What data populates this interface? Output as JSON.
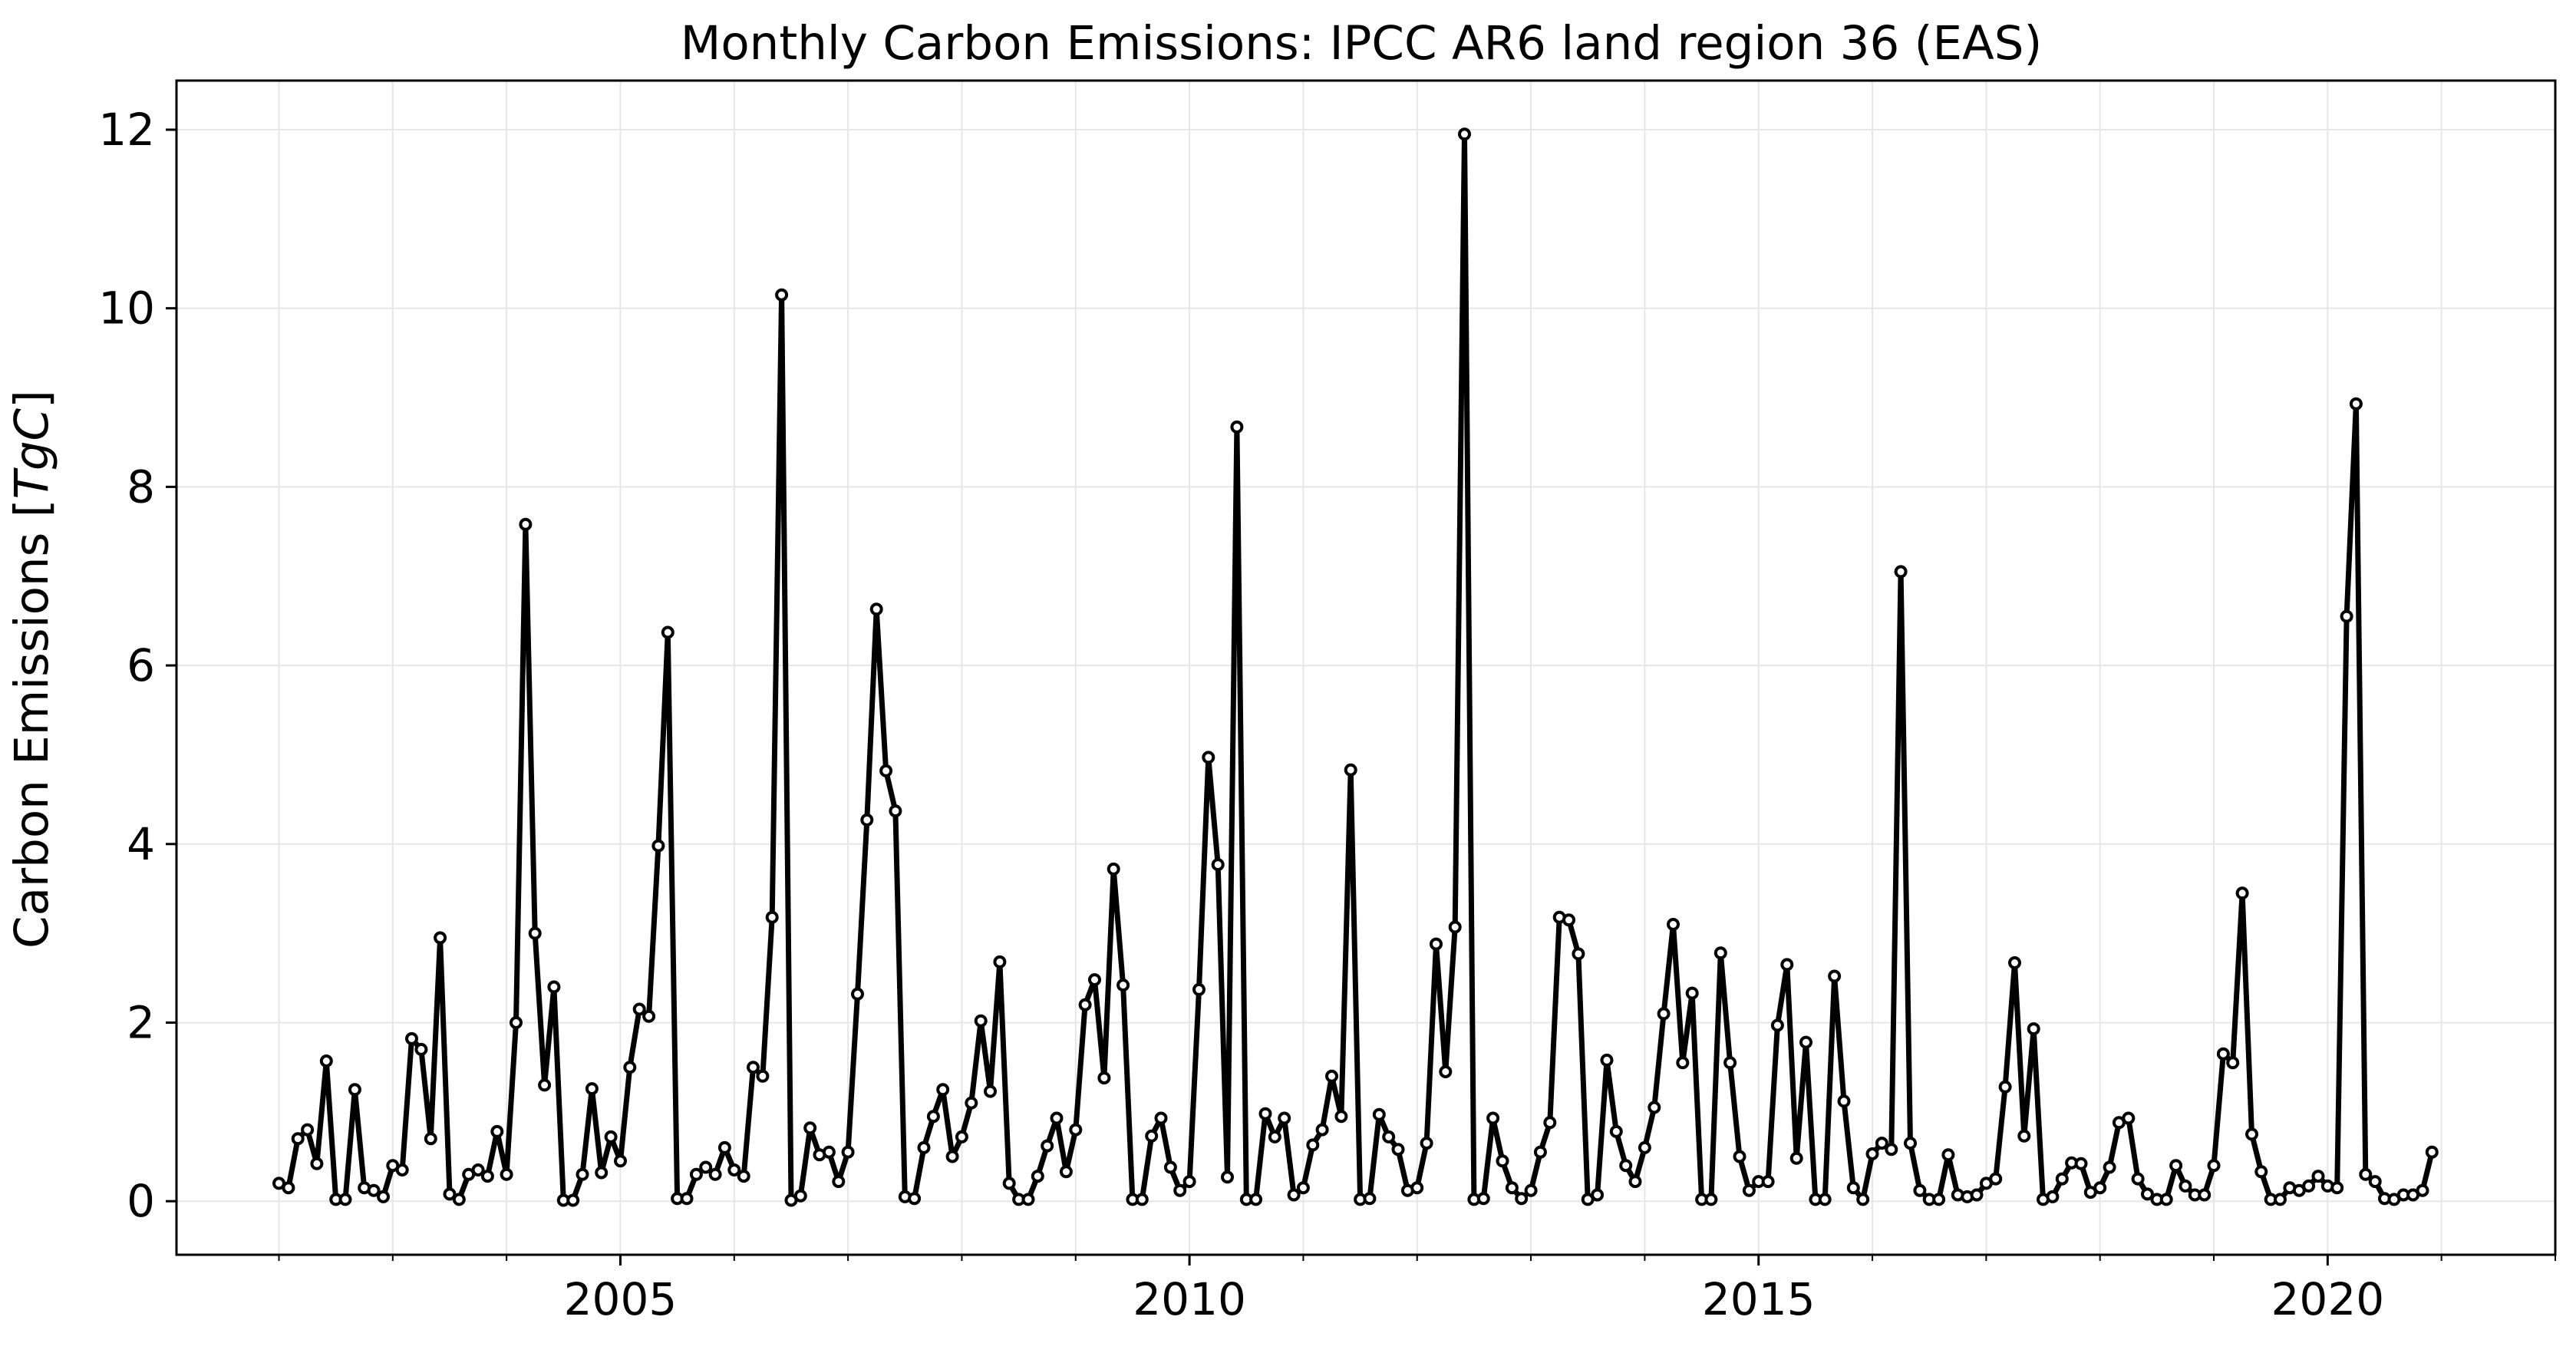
{
  "chart_data": {
    "type": "line",
    "title": "Monthly Carbon Emissions: IPCC AR6 land region 36 (EAS)",
    "xlabel": "",
    "ylabel": "Carbon Emissions [TgC]",
    "ylabel_parts": {
      "prefix": "Carbon Emissions [",
      "unit": "TgC",
      "suffix": "]"
    },
    "x_start": "2002-01",
    "x_frequency": "monthly",
    "xlim": [
      2001.1,
      2022.0
    ],
    "ylim": [
      -0.6,
      12.55
    ],
    "x_ticks": [
      2005,
      2010,
      2015,
      2020
    ],
    "x_tick_labels": [
      "2005",
      "2010",
      "2015",
      "2020"
    ],
    "y_ticks": [
      0,
      2,
      4,
      6,
      8,
      10,
      12
    ],
    "y_tick_labels": [
      "0",
      "2",
      "4",
      "6",
      "8",
      "10",
      "12"
    ],
    "grid": true,
    "series": [
      {
        "line_color": "#000000",
        "marker_face": "#ffffff",
        "values": [
          0.2,
          0.15,
          0.7,
          0.8,
          0.42,
          1.57,
          0.02,
          0.02,
          1.25,
          0.15,
          0.12,
          0.05,
          0.4,
          0.35,
          1.82,
          1.7,
          0.7,
          2.95,
          0.08,
          0.02,
          0.3,
          0.35,
          0.28,
          0.78,
          0.3,
          2.0,
          7.58,
          3.0,
          1.3,
          2.4,
          0.01,
          0.01,
          0.3,
          1.26,
          0.32,
          0.72,
          0.45,
          1.5,
          2.15,
          2.07,
          3.98,
          6.37,
          0.03,
          0.03,
          0.3,
          0.38,
          0.3,
          0.6,
          0.35,
          0.28,
          1.5,
          1.4,
          3.18,
          10.15,
          0.01,
          0.06,
          0.82,
          0.52,
          0.55,
          0.22,
          0.55,
          2.32,
          4.27,
          6.63,
          4.82,
          4.37,
          0.05,
          0.03,
          0.6,
          0.95,
          1.25,
          0.5,
          0.72,
          1.1,
          2.02,
          1.23,
          2.68,
          0.2,
          0.02,
          0.02,
          0.28,
          0.62,
          0.93,
          0.33,
          0.8,
          2.2,
          2.48,
          1.38,
          3.72,
          2.42,
          0.02,
          0.02,
          0.73,
          0.93,
          0.38,
          0.12,
          0.22,
          2.37,
          4.97,
          3.77,
          0.27,
          8.67,
          0.02,
          0.02,
          0.98,
          0.72,
          0.93,
          0.07,
          0.15,
          0.63,
          0.8,
          1.4,
          0.95,
          4.83,
          0.02,
          0.03,
          0.97,
          0.72,
          0.58,
          0.12,
          0.15,
          0.65,
          2.88,
          1.45,
          3.07,
          11.95,
          0.02,
          0.03,
          0.93,
          0.45,
          0.15,
          0.03,
          0.12,
          0.55,
          0.88,
          3.18,
          3.15,
          2.77,
          0.02,
          0.07,
          1.58,
          0.78,
          0.4,
          0.22,
          0.6,
          1.05,
          2.1,
          3.1,
          1.55,
          2.33,
          0.02,
          0.02,
          2.78,
          1.55,
          0.5,
          0.12,
          0.22,
          0.22,
          1.97,
          2.65,
          0.48,
          1.78,
          0.02,
          0.02,
          2.52,
          1.12,
          0.15,
          0.02,
          0.53,
          0.65,
          0.58,
          7.05,
          0.65,
          0.12,
          0.02,
          0.02,
          0.52,
          0.07,
          0.05,
          0.07,
          0.2,
          0.25,
          1.28,
          2.67,
          0.73,
          1.93,
          0.02,
          0.05,
          0.25,
          0.43,
          0.42,
          0.1,
          0.15,
          0.38,
          0.88,
          0.93,
          0.25,
          0.08,
          0.02,
          0.02,
          0.4,
          0.17,
          0.07,
          0.07,
          0.4,
          1.65,
          1.55,
          3.45,
          0.75,
          0.33,
          0.02,
          0.02,
          0.15,
          0.12,
          0.17,
          0.28,
          0.17,
          0.15,
          6.55,
          8.93,
          0.3,
          0.22,
          0.03,
          0.02,
          0.07,
          0.07,
          0.12,
          0.55
        ]
      }
    ]
  }
}
